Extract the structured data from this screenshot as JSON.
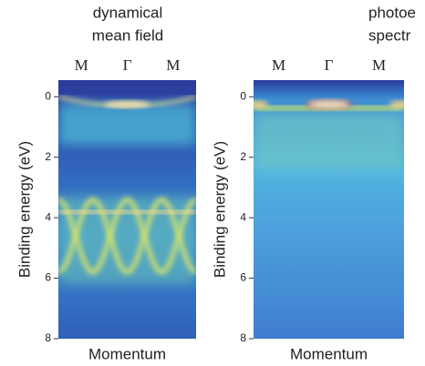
{
  "chart_data": [
    {
      "type": "heatmap",
      "title_lines": [
        "dynamical",
        "mean field"
      ],
      "categories": [
        "M",
        "Γ",
        "M"
      ],
      "x_label": "Momentum",
      "y_label": "Binding energy (eV)",
      "ylim": [
        8,
        -0.55
      ],
      "yticks": [
        0,
        2,
        4,
        6,
        8
      ]
    },
    {
      "type": "heatmap",
      "title_lines": [
        "photoe",
        "spectr"
      ],
      "categories": [
        "M",
        "Γ",
        "M"
      ],
      "x_label": "Momentum",
      "y_label": "Binding energy (eV)",
      "ylim": [
        8,
        -0.55
      ],
      "yticks": [
        0,
        2,
        4,
        6,
        8
      ]
    }
  ]
}
